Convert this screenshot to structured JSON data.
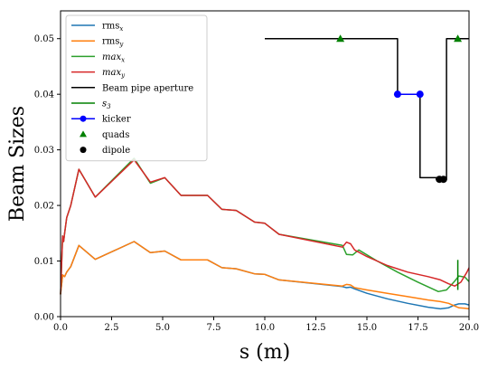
{
  "chart_data": {
    "type": "line",
    "xlabel": "s (m)",
    "ylabel": "Beam Sizes",
    "xlim": [
      0,
      20
    ],
    "ylim": [
      0,
      0.055
    ],
    "xticks": [
      "0.0",
      "2.5",
      "5.0",
      "7.5",
      "10.0",
      "12.5",
      "15.0",
      "17.5",
      "20.0"
    ],
    "yticks": [
      "0.00",
      "0.01",
      "0.02",
      "0.03",
      "0.04",
      "0.05"
    ],
    "grid": false,
    "legend_position": "upper-left",
    "series": [
      {
        "name": "rms_x",
        "color": "#1f77b4",
        "x": [
          0,
          0.1,
          0.2,
          0.3,
          0.5,
          0.9,
          1.7,
          3.6,
          4.4,
          5.1,
          5.9,
          7.2,
          7.9,
          8.6,
          9.5,
          10.0,
          10.7,
          13.8,
          14.0,
          14.2,
          14.4,
          15.0,
          16.0,
          17.0,
          18.0,
          18.6,
          19.0,
          19.3,
          19.5,
          19.8,
          20.0
        ],
        "y": [
          0.004,
          0.0075,
          0.0072,
          0.008,
          0.009,
          0.0128,
          0.0103,
          0.0135,
          0.0115,
          0.0118,
          0.0102,
          0.0102,
          0.0088,
          0.0086,
          0.0077,
          0.0076,
          0.0066,
          0.0054,
          0.0052,
          0.0053,
          0.005,
          0.0042,
          0.0032,
          0.0024,
          0.0017,
          0.0014,
          0.0016,
          0.0021,
          0.0023,
          0.0023,
          0.0021
        ]
      },
      {
        "name": "rms_y",
        "color": "#ff7f0e",
        "x": [
          0,
          0.1,
          0.2,
          0.3,
          0.5,
          0.9,
          1.7,
          3.6,
          4.4,
          5.1,
          5.9,
          7.2,
          7.9,
          8.6,
          9.5,
          10.0,
          10.7,
          13.8,
          14.0,
          14.2,
          14.4,
          15.0,
          16.0,
          17.0,
          18.0,
          18.6,
          19.0,
          19.3,
          19.5,
          19.8,
          20.0
        ],
        "y": [
          0.004,
          0.0075,
          0.0072,
          0.008,
          0.009,
          0.0128,
          0.0103,
          0.0135,
          0.0115,
          0.0118,
          0.0102,
          0.0102,
          0.0088,
          0.0086,
          0.0077,
          0.0076,
          0.0066,
          0.0055,
          0.0058,
          0.0057,
          0.0052,
          0.0048,
          0.0042,
          0.0036,
          0.003,
          0.0027,
          0.0024,
          0.0019,
          0.0016,
          0.0015,
          0.0014
        ]
      },
      {
        "name": "max_x",
        "color": "#2ca02c",
        "x": [
          0,
          0.1,
          0.15,
          0.2,
          0.3,
          0.5,
          0.9,
          1.7,
          3.6,
          4.4,
          5.1,
          5.9,
          7.2,
          7.9,
          8.6,
          9.5,
          10.0,
          10.7,
          13.8,
          14.0,
          14.3,
          14.6,
          15.5,
          16.5,
          17.5,
          18.5,
          18.9,
          19.3,
          19.5,
          19.8,
          20.0
        ],
        "y": [
          0.004,
          0.0145,
          0.0135,
          0.015,
          0.0178,
          0.02,
          0.0265,
          0.0215,
          0.0285,
          0.024,
          0.025,
          0.0218,
          0.0218,
          0.0193,
          0.0191,
          0.017,
          0.0168,
          0.0148,
          0.0128,
          0.0112,
          0.0111,
          0.012,
          0.01,
          0.008,
          0.0062,
          0.0045,
          0.0048,
          0.0064,
          0.0073,
          0.0071,
          0.0063
        ]
      },
      {
        "name": "max_y",
        "color": "#d62728",
        "x": [
          0,
          0.1,
          0.15,
          0.2,
          0.3,
          0.5,
          0.9,
          1.7,
          3.6,
          4.4,
          5.1,
          5.9,
          7.2,
          7.9,
          8.6,
          9.5,
          10.0,
          10.7,
          13.8,
          14.0,
          14.2,
          14.4,
          15.0,
          16.0,
          17.0,
          18.0,
          18.6,
          19.0,
          19.3,
          19.6,
          19.9,
          20.0
        ],
        "y": [
          0.004,
          0.0145,
          0.0135,
          0.015,
          0.0178,
          0.02,
          0.0265,
          0.0215,
          0.0282,
          0.0242,
          0.025,
          0.0218,
          0.0218,
          0.0193,
          0.0191,
          0.017,
          0.0168,
          0.0148,
          0.0125,
          0.0134,
          0.0131,
          0.012,
          0.0108,
          0.0092,
          0.008,
          0.0072,
          0.0066,
          0.0059,
          0.0055,
          0.0062,
          0.008,
          0.0088
        ]
      },
      {
        "name": "Beam pipe aperture",
        "color": "#000000",
        "x": [
          10.0,
          16.5,
          16.5,
          17.6,
          17.6,
          18.4,
          18.4,
          18.9,
          18.9,
          20.0
        ],
        "y": [
          0.05,
          0.05,
          0.04,
          0.04,
          0.025,
          0.025,
          0.0247,
          0.0247,
          0.05,
          0.05
        ]
      },
      {
        "name": "s_3",
        "color": "#008000",
        "x": [
          19.45,
          19.45
        ],
        "y": [
          0.0048,
          0.0102
        ]
      }
    ],
    "markers": [
      {
        "name": "kicker",
        "color": "#0000ff",
        "shape": "circle",
        "points": [
          [
            16.5,
            0.04
          ],
          [
            17.6,
            0.04
          ]
        ]
      },
      {
        "name": "quads",
        "color": "#008000",
        "shape": "triangle",
        "points": [
          [
            13.7,
            0.05
          ],
          [
            19.45,
            0.05
          ]
        ]
      },
      {
        "name": "dipole",
        "color": "#000000",
        "shape": "circle",
        "points": [
          [
            18.55,
            0.0247
          ],
          [
            18.75,
            0.0247
          ]
        ]
      }
    ],
    "legend": [
      {
        "label": "rms",
        "sub": "x",
        "italic": false,
        "color": "#1f77b4",
        "kind": "line"
      },
      {
        "label": "rms",
        "sub": "y",
        "italic": false,
        "color": "#ff7f0e",
        "kind": "line"
      },
      {
        "label": "max",
        "sub": "x",
        "italic": true,
        "color": "#2ca02c",
        "kind": "line"
      },
      {
        "label": "max",
        "sub": "y",
        "italic": true,
        "color": "#d62728",
        "kind": "line"
      },
      {
        "label": "Beam pipe aperture",
        "sub": "",
        "italic": false,
        "color": "#000000",
        "kind": "line"
      },
      {
        "label": "s",
        "sub": "3",
        "italic": true,
        "color": "#008000",
        "kind": "line"
      },
      {
        "label": "kicker",
        "sub": "",
        "italic": false,
        "color": "#0000ff",
        "kind": "line-marker"
      },
      {
        "label": "quads",
        "sub": "",
        "italic": false,
        "color": "#008000",
        "kind": "triangle"
      },
      {
        "label": "dipole",
        "sub": "",
        "italic": false,
        "color": "#000000",
        "kind": "dot"
      }
    ]
  }
}
